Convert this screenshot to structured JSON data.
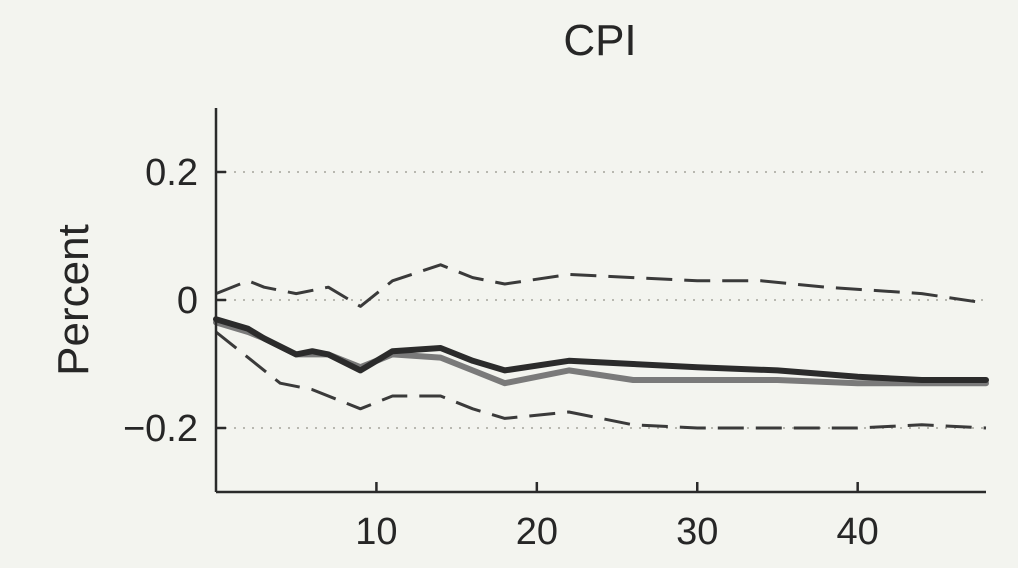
{
  "chart_data": {
    "type": "line",
    "title": "CPI",
    "xlabel": "",
    "ylabel": "Percent",
    "xlim": [
      0,
      48
    ],
    "ylim": [
      -0.3,
      0.3
    ],
    "xticks": [
      10,
      20,
      30,
      40
    ],
    "yticks": [
      -0.2,
      0,
      0.2
    ],
    "ytick_labels": [
      "−0.2",
      "0",
      "0.2"
    ],
    "grid": "dotted horizontal at y ticks",
    "series": [
      {
        "style": "dashed",
        "color": "#3a3a3a",
        "x": [
          0,
          2,
          3,
          5,
          7,
          9,
          11,
          14,
          16,
          18,
          22,
          26,
          30,
          34,
          38,
          41,
          44,
          48
        ],
        "y": [
          0.01,
          0.03,
          0.02,
          0.01,
          0.02,
          -0.01,
          0.03,
          0.055,
          0.035,
          0.025,
          0.04,
          0.035,
          0.03,
          0.03,
          0.02,
          0.015,
          0.01,
          -0.005
        ]
      },
      {
        "style": "dashed",
        "color": "#3a3a3a",
        "x": [
          0,
          2,
          4,
          6,
          8,
          9,
          11,
          14,
          16,
          18,
          22,
          26,
          30,
          35,
          40,
          44,
          48
        ],
        "y": [
          -0.05,
          -0.09,
          -0.13,
          -0.14,
          -0.16,
          -0.17,
          -0.15,
          -0.15,
          -0.17,
          -0.185,
          -0.175,
          -0.195,
          -0.2,
          -0.2,
          -0.2,
          -0.195,
          -0.2
        ]
      },
      {
        "style": "solid",
        "color": "#7a7a7a",
        "x": [
          0,
          2,
          3,
          5,
          7,
          9,
          11,
          14,
          16,
          18,
          22,
          26,
          30,
          35,
          40,
          44,
          48
        ],
        "y": [
          -0.035,
          -0.05,
          -0.06,
          -0.085,
          -0.085,
          -0.105,
          -0.085,
          -0.09,
          -0.11,
          -0.13,
          -0.11,
          -0.125,
          -0.125,
          -0.125,
          -0.13,
          -0.13,
          -0.13
        ]
      },
      {
        "style": "solid",
        "color": "#2b2b2b",
        "x": [
          0,
          2,
          3,
          5,
          6,
          7,
          9,
          11,
          14,
          16,
          18,
          22,
          26,
          30,
          35,
          40,
          44,
          48
        ],
        "y": [
          -0.03,
          -0.045,
          -0.06,
          -0.085,
          -0.08,
          -0.085,
          -0.11,
          -0.08,
          -0.075,
          -0.095,
          -0.11,
          -0.095,
          -0.1,
          -0.105,
          -0.11,
          -0.12,
          -0.125,
          -0.125
        ]
      }
    ]
  }
}
